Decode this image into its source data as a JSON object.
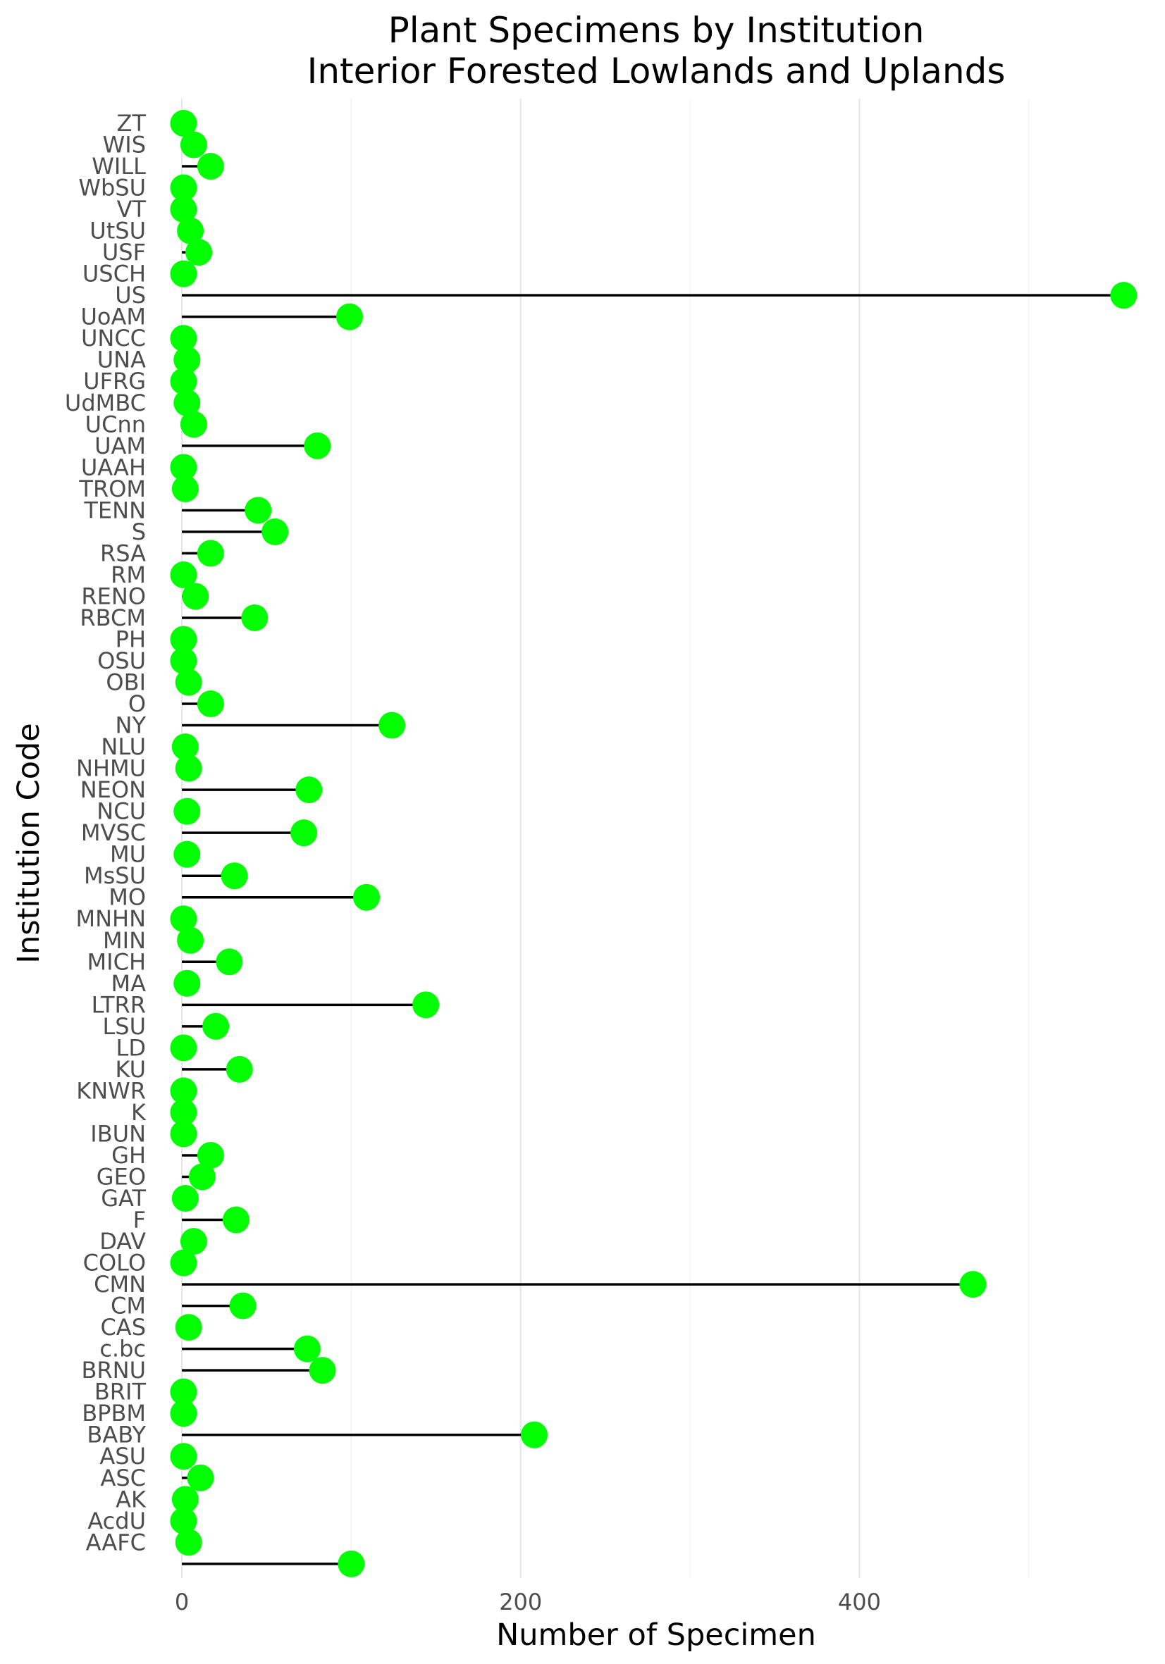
{
  "chart_data": {
    "type": "lollipop",
    "title_lines": [
      "Plant Specimens by Institution",
      "Interior Forested Lowlands and Uplands"
    ],
    "xlabel": "Number of Specimen",
    "ylabel": "Institution Code",
    "xlim": [
      -15,
      575
    ],
    "x_ticks": [
      0,
      200,
      400
    ],
    "x_minor_ticks": [
      100,
      300,
      500
    ],
    "grid": true,
    "point_color": "#00ff00",
    "stem_color": "#000000",
    "categories_top_to_bottom": [
      "ZT",
      "WIS",
      "WILL",
      "WbSU",
      "VT",
      "UtSU",
      "USF",
      "USCH",
      "US",
      "UoAM",
      "UNCC",
      "UNA",
      "UFRG",
      "UdMBC",
      "UCnn",
      "UAM",
      "UAAH",
      "TROM",
      "TENN",
      "S",
      "RSA",
      "RM",
      "RENO",
      "RBCM",
      "PH",
      "OSU",
      "OBI",
      "O",
      "NY",
      "NLU",
      "NHMU",
      "NEON",
      "NCU",
      "MVSC",
      "MU",
      "MsSU",
      "MO",
      "MNHN",
      "MIN",
      "MICH",
      "MA",
      "LTRR",
      "LSU",
      "LD",
      "KU",
      "KNWR",
      "K",
      "IBUN",
      "GH",
      "GEO",
      "GAT",
      "F",
      "DAV",
      "COLO",
      "CMN",
      "CM",
      "CAS",
      "c.bc",
      "BRNU",
      "BRIT",
      "BPBM",
      "BABY",
      "ASU",
      "ASC",
      "AK",
      "AcdU",
      "AAFC",
      ""
    ],
    "values_top_to_bottom": [
      1,
      7,
      17,
      1,
      1,
      5,
      10,
      1,
      556,
      99,
      1,
      3,
      1,
      3,
      7,
      80,
      1,
      2,
      45,
      55,
      17,
      1,
      8,
      43,
      1,
      1,
      4,
      17,
      124,
      2,
      4,
      75,
      3,
      72,
      3,
      31,
      109,
      1,
      5,
      28,
      3,
      144,
      20,
      1,
      34,
      1,
      1,
      1,
      17,
      12,
      2,
      32,
      7,
      1,
      467,
      36,
      4,
      74,
      83,
      1,
      1,
      208,
      1,
      11,
      2,
      1,
      4,
      100
    ]
  }
}
